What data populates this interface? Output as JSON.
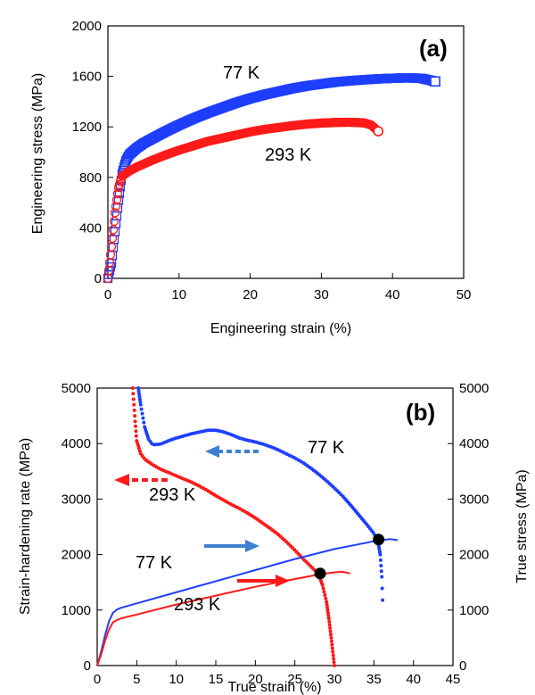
{
  "colors": {
    "blue": "#1f3fff",
    "red": "#ff1a1a",
    "arrow_blue": "#3f7fd2",
    "arrow_red": "#ff1a1a",
    "black": "#000000"
  },
  "chart_data": [
    {
      "type": "scatter",
      "panel_label": "(a)",
      "xlabel": "Engineering strain (%)",
      "ylabel": "Engineering stress (MPa)",
      "xlim": [
        0,
        50
      ],
      "ylim": [
        0,
        2000
      ],
      "xticks": [
        "0",
        "10",
        "20",
        "30",
        "40",
        "50"
      ],
      "yticks": [
        "0",
        "400",
        "800",
        "1200",
        "1600",
        "2000"
      ],
      "series": [
        {
          "name": "77 K",
          "marker": "square",
          "color": "#1f3fff",
          "x": [
            0,
            0.5,
            1.0,
            1.5,
            2.0,
            2.5,
            3,
            4,
            5,
            6,
            8,
            10,
            12,
            14,
            16,
            18,
            20,
            22,
            24,
            26,
            28,
            30,
            32,
            34,
            36,
            38,
            40,
            42,
            44,
            46
          ],
          "y": [
            0,
            120,
            370,
            620,
            830,
            930,
            980,
            1030,
            1070,
            1100,
            1160,
            1215,
            1265,
            1310,
            1350,
            1390,
            1425,
            1455,
            1480,
            1505,
            1525,
            1540,
            1555,
            1565,
            1573,
            1580,
            1585,
            1588,
            1585,
            1560
          ]
        },
        {
          "name": "293 K",
          "marker": "circle",
          "color": "#ff1a1a",
          "x": [
            0,
            0.5,
            1.0,
            1.5,
            2.0,
            3,
            4,
            6,
            8,
            10,
            12,
            14,
            16,
            18,
            20,
            22,
            24,
            26,
            28,
            30,
            32,
            34,
            36,
            37,
            38
          ],
          "y": [
            0,
            250,
            520,
            720,
            810,
            850,
            880,
            930,
            975,
            1015,
            1050,
            1085,
            1110,
            1135,
            1160,
            1180,
            1195,
            1210,
            1222,
            1230,
            1235,
            1237,
            1232,
            1215,
            1165
          ]
        }
      ],
      "annotations": [
        "77 K",
        "293 K"
      ]
    },
    {
      "type": "line",
      "panel_label": "(b)",
      "xlabel": "True strain (%)",
      "ylabel": "Strain-hardening rate (MPa)",
      "ylabel_right": "True stress (MPa)",
      "xlim": [
        0,
        45
      ],
      "ylim": [
        0,
        5000
      ],
      "xticks": [
        "0",
        "5",
        "10",
        "15",
        "20",
        "25",
        "30",
        "35",
        "40",
        "45"
      ],
      "yticks": [
        "0",
        "1000",
        "2000",
        "3000",
        "4000",
        "5000"
      ],
      "series": [
        {
          "name": "77 K",
          "kind": "strain-hardening-rate",
          "color": "#1f3fff",
          "x": [
            5.2,
            5.5,
            6,
            6.5,
            7,
            8,
            9,
            10,
            11,
            12,
            13,
            14,
            15,
            16,
            17,
            18,
            19,
            20,
            21,
            22,
            23,
            24,
            25,
            26,
            27,
            28,
            29,
            30,
            31,
            32,
            33,
            34,
            35,
            35.5,
            35.8,
            36,
            36.1
          ],
          "y": [
            5000,
            4700,
            4300,
            4080,
            3980,
            3990,
            4050,
            4100,
            4140,
            4180,
            4210,
            4240,
            4240,
            4210,
            4160,
            4100,
            4060,
            4030,
            3990,
            3940,
            3880,
            3810,
            3740,
            3660,
            3560,
            3450,
            3330,
            3200,
            3060,
            2900,
            2730,
            2560,
            2380,
            2250,
            2000,
            1600,
            1180
          ]
        },
        {
          "name": "293 K",
          "kind": "strain-hardening-rate",
          "color": "#ff1a1a",
          "x": [
            4.5,
            4.8,
            5,
            5.5,
            6,
            7,
            8,
            9,
            10,
            11,
            12,
            13,
            14,
            15,
            16,
            17,
            18,
            19,
            20,
            21,
            22,
            23,
            24,
            25,
            26,
            27,
            28,
            28.5,
            29,
            29.3,
            29.6,
            29.8,
            30
          ],
          "y": [
            5000,
            4400,
            4050,
            3820,
            3720,
            3620,
            3540,
            3480,
            3420,
            3360,
            3300,
            3230,
            3150,
            3060,
            2980,
            2900,
            2830,
            2750,
            2660,
            2560,
            2460,
            2350,
            2220,
            2080,
            1930,
            1790,
            1650,
            1450,
            1150,
            850,
            500,
            250,
            0
          ]
        },
        {
          "name": "77 K",
          "kind": "true-stress",
          "color": "#1f3fff",
          "x": [
            0,
            0.5,
            1,
            1.5,
            2,
            2.5,
            3,
            5,
            10,
            15,
            20,
            25,
            30,
            35,
            37,
            38
          ],
          "y": [
            0,
            250,
            550,
            800,
            950,
            1010,
            1040,
            1120,
            1320,
            1520,
            1720,
            1920,
            2100,
            2240,
            2280,
            2260
          ]
        },
        {
          "name": "293 K",
          "kind": "true-stress",
          "color": "#ff1a1a",
          "x": [
            0,
            0.5,
            1,
            1.5,
            2,
            2.5,
            3,
            5,
            10,
            15,
            20,
            25,
            28,
            30,
            31,
            32
          ],
          "y": [
            0,
            200,
            450,
            650,
            780,
            820,
            850,
            920,
            1100,
            1260,
            1420,
            1560,
            1640,
            1680,
            1690,
            1660
          ]
        }
      ],
      "intersections": [
        {
          "x": 28.2,
          "y": 1660
        },
        {
          "x": 35.6,
          "y": 2270
        }
      ],
      "annotations": [
        "77 K",
        "293 K",
        "77 K",
        "293 K"
      ]
    }
  ]
}
